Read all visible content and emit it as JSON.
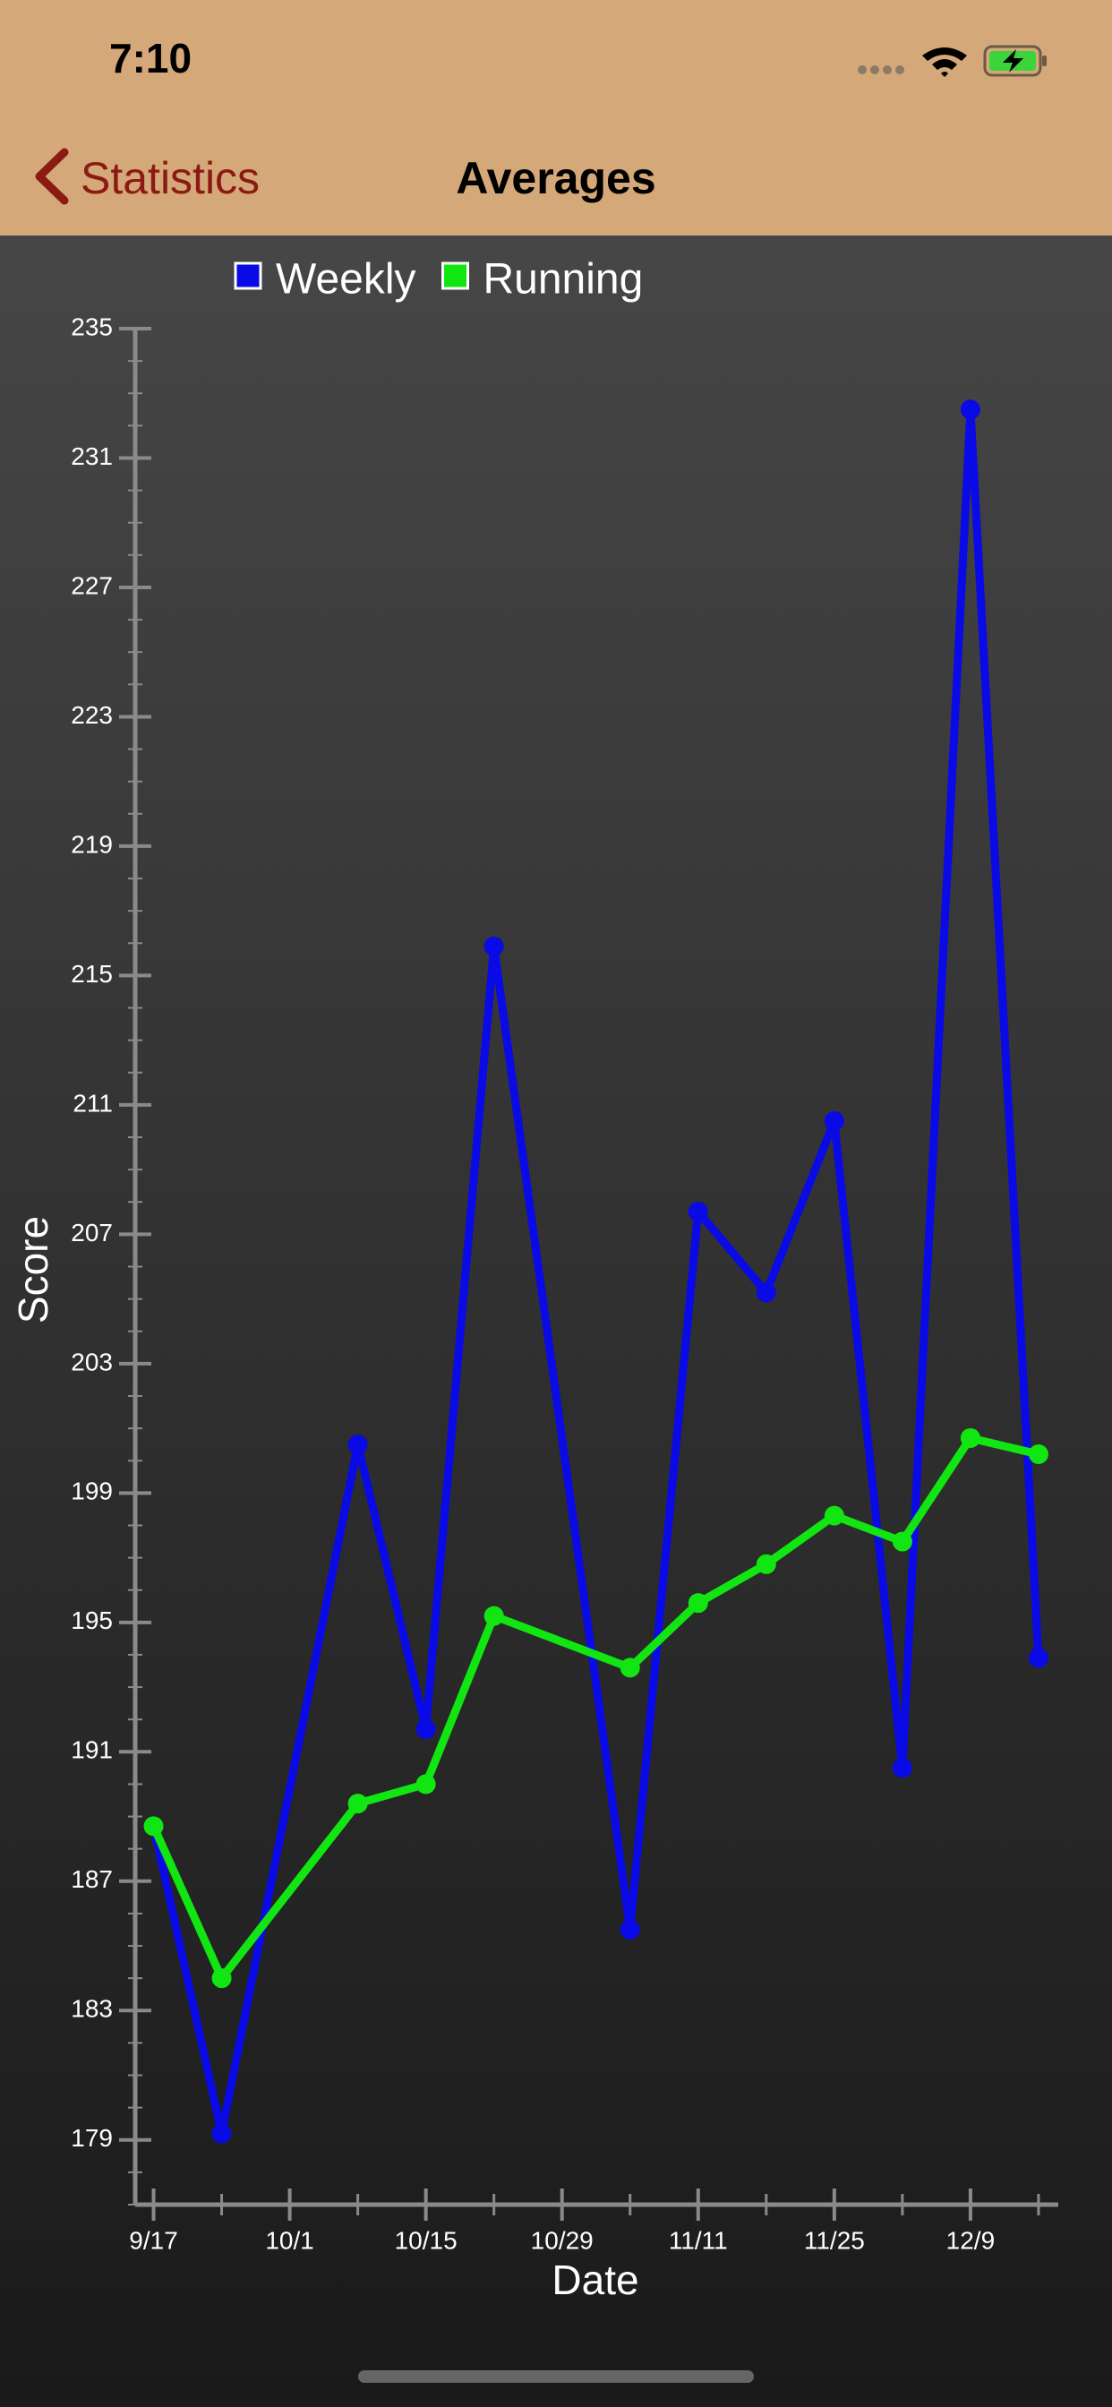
{
  "status_bar": {
    "time": "7:10"
  },
  "nav": {
    "back": "Statistics",
    "title": "Averages"
  },
  "chart_data": {
    "type": "line",
    "x_label": "Date",
    "y_label": "Score",
    "x": [
      0,
      1,
      3,
      4,
      5,
      7,
      8,
      9,
      10,
      11,
      12,
      13
    ],
    "xlim": [
      -0.27,
      13.29
    ],
    "xticks": [
      {
        "value": 0,
        "label": "9/17"
      },
      {
        "value": 2,
        "label": "10/1"
      },
      {
        "value": 4,
        "label": "10/15"
      },
      {
        "value": 6,
        "label": "10/29"
      },
      {
        "value": 8,
        "label": "11/11"
      },
      {
        "value": 10,
        "label": "11/25"
      },
      {
        "value": 12,
        "label": "12/9"
      }
    ],
    "ylim": [
      177,
      235
    ],
    "yticks": [
      179,
      183,
      187,
      191,
      195,
      199,
      203,
      207,
      211,
      215,
      219,
      223,
      227,
      231,
      235
    ],
    "series": [
      {
        "name": "Weekly",
        "color": "#0a0ae6",
        "values": [
          188.7,
          179.2,
          200.5,
          191.7,
          215.9,
          185.5,
          207.7,
          205.2,
          210.5,
          190.5,
          232.5,
          193.9
        ]
      },
      {
        "name": "Running",
        "color": "#12e612",
        "values": [
          188.7,
          184.0,
          189.4,
          190.0,
          195.2,
          193.6,
          195.6,
          196.8,
          198.3,
          197.5,
          200.7,
          200.2
        ]
      }
    ]
  }
}
